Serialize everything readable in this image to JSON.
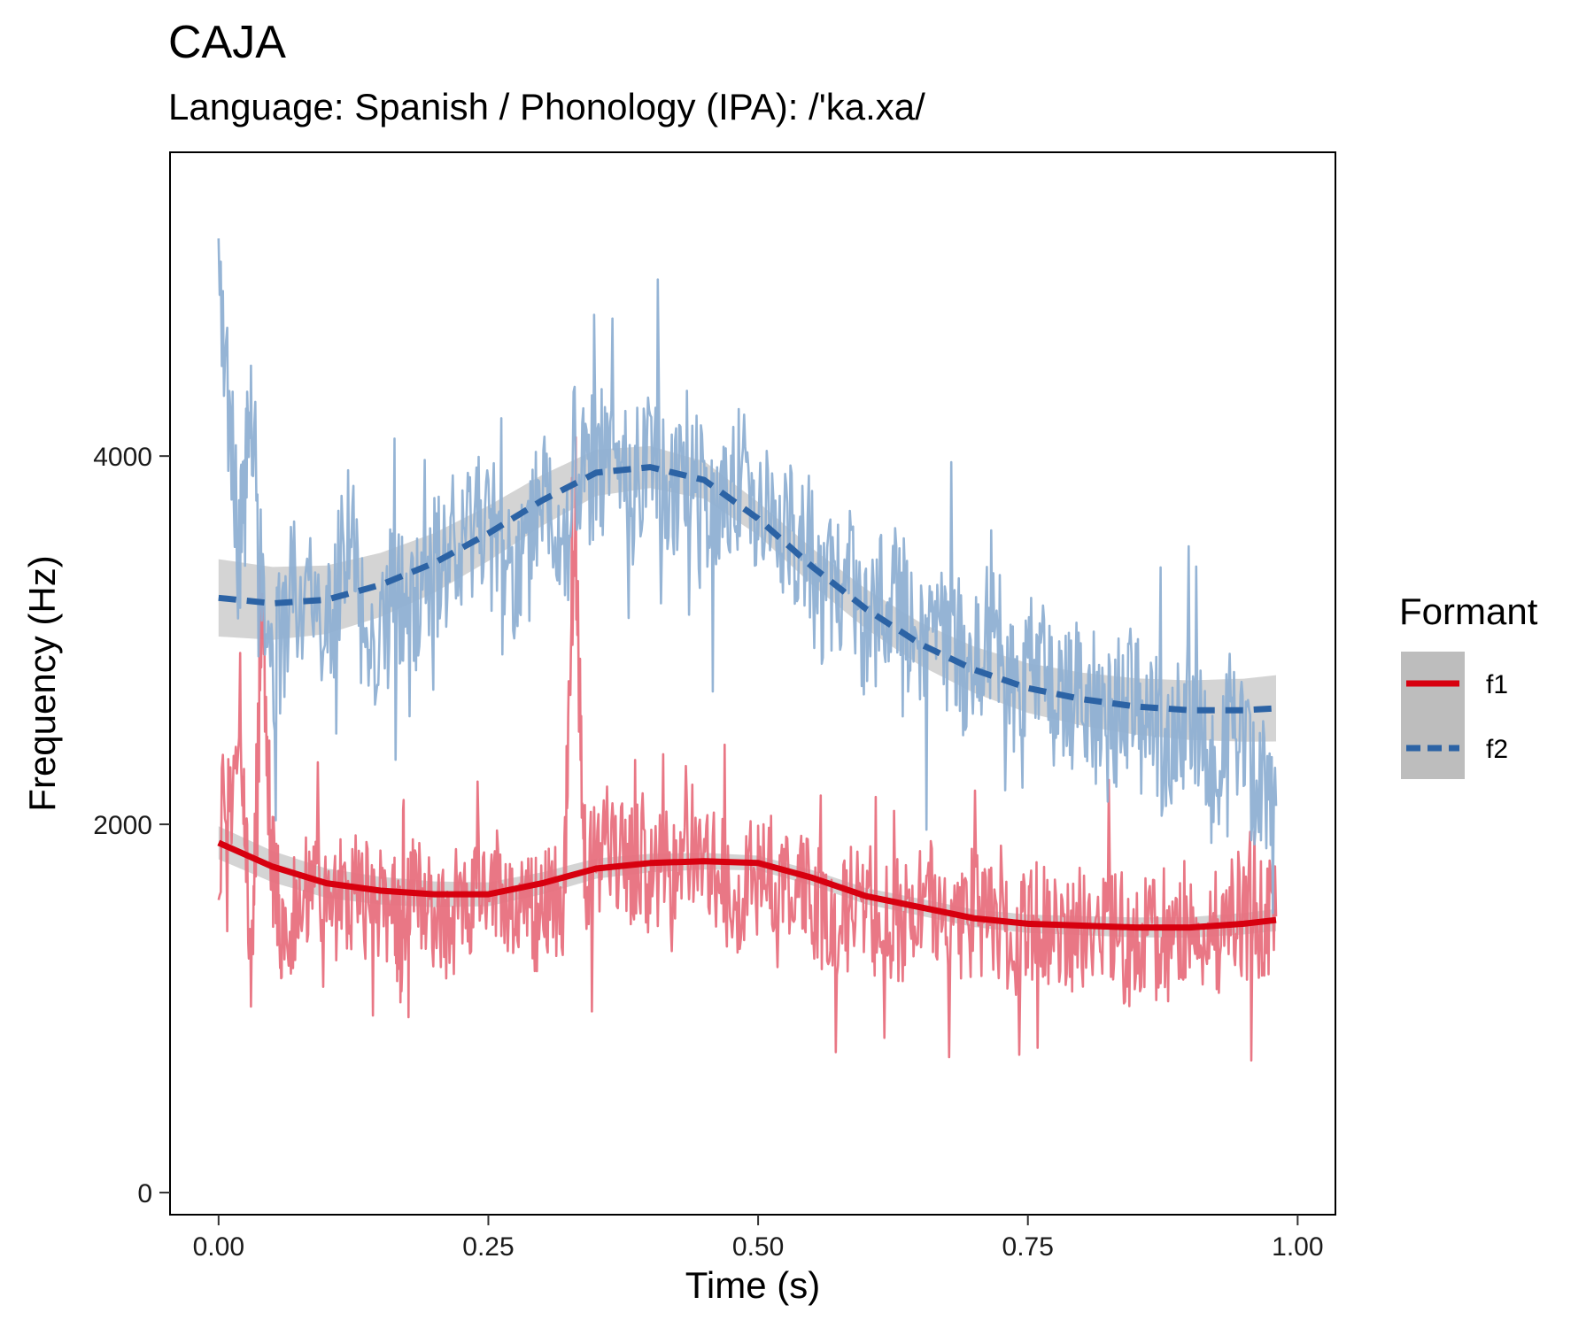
{
  "chart_data": {
    "type": "line",
    "title": "CAJA",
    "subtitle": "Language: Spanish / Phonology (IPA): /'ka.xa/",
    "xlabel": "Time (s)",
    "ylabel": "Frequency (Hz)",
    "xlim": [
      -0.045,
      1.035
    ],
    "ylim": [
      -120,
      5650
    ],
    "x_ticks": [
      0.0,
      0.25,
      0.5,
      0.75,
      1.0
    ],
    "x_tick_labels": [
      "0.00",
      "0.25",
      "0.50",
      "0.75",
      "1.00"
    ],
    "y_ticks": [
      0,
      2000,
      4000
    ],
    "y_tick_labels": [
      "0",
      "2000",
      "4000"
    ],
    "grid": false,
    "legend": {
      "title": "Formant",
      "position": "right",
      "entries": [
        {
          "label": "f1",
          "line_style": "solid"
        },
        {
          "label": "f2",
          "line_style": "dashed"
        }
      ]
    },
    "colors": {
      "f1_raw": "#e8707e",
      "f1_smooth": "#d7000f",
      "f2_raw": "#8fb0d3",
      "f2_smooth": "#2c63a5",
      "ribbon": "#bdbdbd"
    },
    "series": [
      {
        "name": "f1",
        "raw": {
          "x": [
            0.0,
            0.02,
            0.03,
            0.04,
            0.05,
            0.06,
            0.08,
            0.1,
            0.12,
            0.14,
            0.16,
            0.17,
            0.18,
            0.2,
            0.22,
            0.24,
            0.26,
            0.28,
            0.3,
            0.32,
            0.33,
            0.34,
            0.36,
            0.38,
            0.4,
            0.42,
            0.44,
            0.46,
            0.48,
            0.5,
            0.52,
            0.54,
            0.56,
            0.58,
            0.6,
            0.62,
            0.64,
            0.66,
            0.68,
            0.7,
            0.72,
            0.74,
            0.76,
            0.78,
            0.8,
            0.82,
            0.84,
            0.86,
            0.88,
            0.9,
            0.92,
            0.94,
            0.96,
            0.98
          ],
          "y": [
            1900,
            2600,
            1200,
            3000,
            1800,
            1400,
            1700,
            1500,
            1650,
            1550,
            1600,
            1300,
            1750,
            1500,
            1450,
            1600,
            1700,
            1550,
            1500,
            1600,
            3600,
            1700,
            1900,
            1750,
            1800,
            1650,
            1900,
            1750,
            1600,
            1850,
            1700,
            1600,
            1550,
            1500,
            1650,
            1450,
            1500,
            1600,
            1400,
            1550,
            1450,
            1350,
            1500,
            1400,
            1450,
            1500,
            1300,
            1400,
            1350,
            1500,
            1400,
            1550,
            1450,
            1500
          ]
        },
        "smooth": {
          "x": [
            0.0,
            0.05,
            0.1,
            0.15,
            0.2,
            0.25,
            0.3,
            0.35,
            0.4,
            0.45,
            0.5,
            0.55,
            0.6,
            0.65,
            0.7,
            0.75,
            0.8,
            0.85,
            0.9,
            0.95,
            0.98
          ],
          "y": [
            1900,
            1770,
            1680,
            1640,
            1620,
            1620,
            1680,
            1760,
            1790,
            1800,
            1790,
            1710,
            1610,
            1550,
            1490,
            1460,
            1450,
            1440,
            1440,
            1460,
            1480
          ]
        }
      },
      {
        "name": "f2",
        "raw": {
          "x": [
            0.0,
            0.02,
            0.03,
            0.05,
            0.07,
            0.1,
            0.12,
            0.14,
            0.16,
            0.18,
            0.2,
            0.22,
            0.24,
            0.26,
            0.28,
            0.3,
            0.32,
            0.34,
            0.36,
            0.38,
            0.4,
            0.42,
            0.44,
            0.46,
            0.48,
            0.5,
            0.52,
            0.54,
            0.56,
            0.58,
            0.6,
            0.62,
            0.64,
            0.66,
            0.68,
            0.7,
            0.72,
            0.74,
            0.76,
            0.78,
            0.8,
            0.82,
            0.84,
            0.86,
            0.88,
            0.9,
            0.92,
            0.94,
            0.96,
            0.98
          ],
          "y": [
            5000,
            3500,
            4200,
            2800,
            3300,
            3000,
            3600,
            2900,
            3200,
            3100,
            3400,
            3300,
            3700,
            3500,
            3300,
            3800,
            3500,
            3900,
            4000,
            3700,
            4100,
            3800,
            4000,
            3600,
            3900,
            3700,
            3500,
            3600,
            3200,
            3400,
            3000,
            3300,
            3100,
            2900,
            3000,
            2800,
            3100,
            2700,
            2900,
            2600,
            2800,
            2500,
            2700,
            2600,
            2400,
            2700,
            2300,
            2600,
            2200,
            2100
          ]
        },
        "smooth": {
          "x": [
            0.0,
            0.05,
            0.1,
            0.15,
            0.2,
            0.25,
            0.3,
            0.35,
            0.4,
            0.45,
            0.5,
            0.55,
            0.6,
            0.65,
            0.7,
            0.75,
            0.8,
            0.85,
            0.9,
            0.95,
            0.98
          ],
          "y": [
            3230,
            3200,
            3220,
            3300,
            3420,
            3580,
            3760,
            3910,
            3940,
            3870,
            3660,
            3400,
            3170,
            2980,
            2840,
            2740,
            2680,
            2640,
            2620,
            2620,
            2630
          ]
        }
      }
    ]
  }
}
